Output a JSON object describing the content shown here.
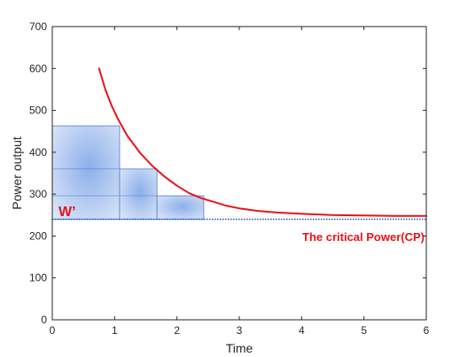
{
  "chart_data": {
    "type": "line",
    "xlabel": "Time",
    "ylabel": "Power output",
    "xlim": [
      0,
      6
    ],
    "ylim": [
      0,
      700
    ],
    "xticks": [
      "0",
      "1",
      "2",
      "3",
      "4",
      "5",
      "6"
    ],
    "yticks": [
      "0",
      "100",
      "200",
      "300",
      "400",
      "500",
      "600",
      "700"
    ],
    "grid": false,
    "series": [
      {
        "values_x": [
          0.75,
          0.85,
          0.95,
          1.05,
          1.2,
          1.4,
          1.6,
          1.8,
          2.0,
          2.2,
          2.4,
          2.6,
          2.8,
          3.0,
          3.3,
          3.6,
          4.0,
          4.5,
          5.0,
          5.5,
          6.0
        ],
        "values_y": [
          600,
          550,
          512,
          480,
          440,
          400,
          368,
          342,
          320,
          302,
          290,
          281,
          272,
          266,
          260,
          256,
          253,
          250,
          249,
          248,
          248
        ],
        "color": "#e8141b"
      }
    ],
    "cp_line": {
      "y": 240,
      "x_start": 0,
      "x_end": 6,
      "color": "#1f4fbf",
      "style": "dotted"
    },
    "w_prime_blocks": [
      {
        "x0": 0.0,
        "x1": 1.08,
        "y0": 240,
        "y1": 463
      },
      {
        "x0": 1.08,
        "x1": 1.68,
        "y0": 240,
        "y1": 360
      },
      {
        "x0": 1.68,
        "x1": 2.43,
        "y0": 240,
        "y1": 296
      }
    ],
    "block_color": "#4a7fd6",
    "annotations": {
      "w_prime": "W’",
      "cp_label": "The critical Power(CP)",
      "color": "#e8141b"
    }
  }
}
